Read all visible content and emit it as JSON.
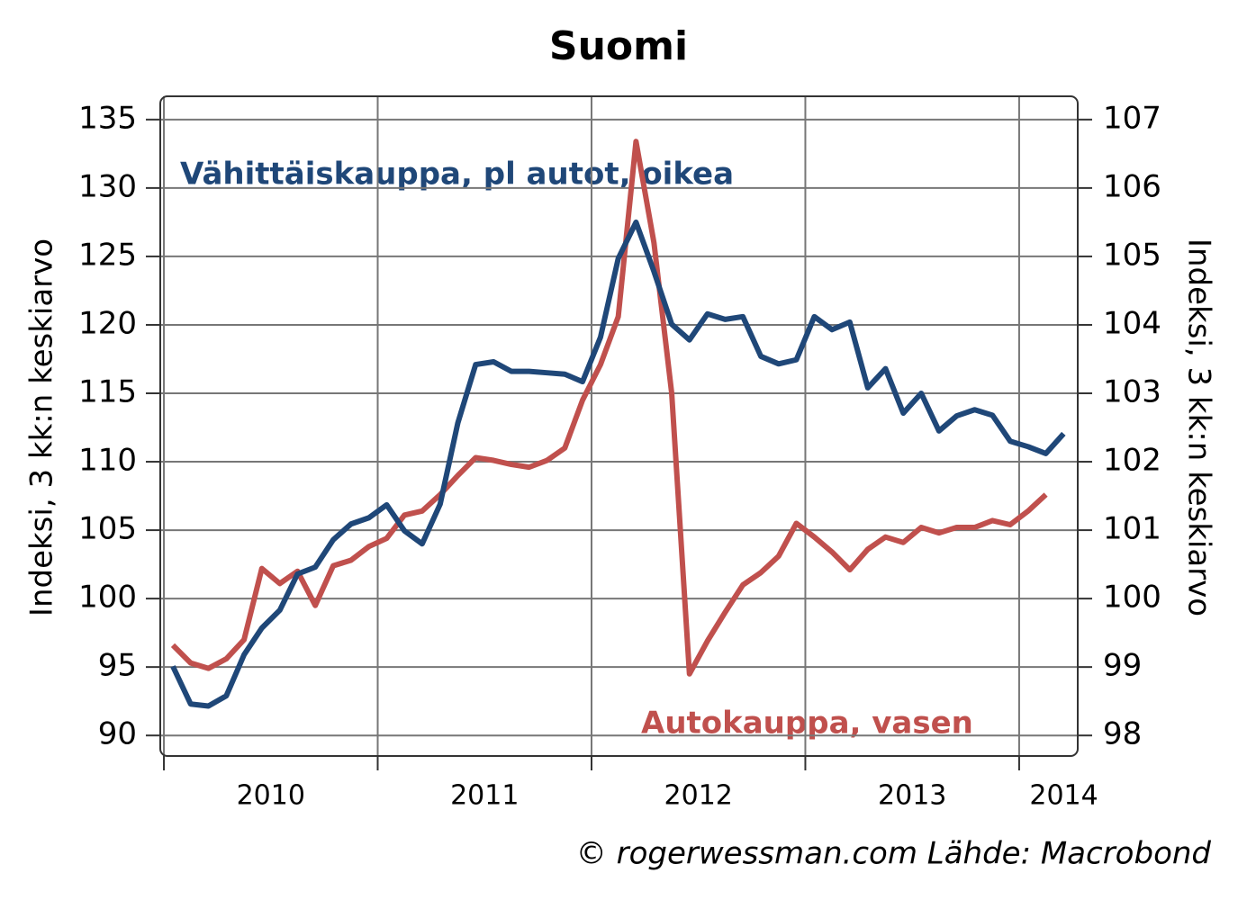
{
  "chart_data": {
    "type": "line",
    "title": "Suomi",
    "y_label": "Indeksi, 3 kk:n keskiarvo",
    "y2_label": "Indeksi, 3 kk:n keskiarvo",
    "source": "© rogerwessman.com Lähde: Macrobond",
    "annotations": [
      {
        "text": "Vähittäiskauppa, pl autot, oikea",
        "series": 0
      },
      {
        "text": "Autokauppa, vasen",
        "series": 1
      }
    ],
    "x": [
      2010.042,
      2010.125,
      2010.208,
      2010.292,
      2010.375,
      2010.458,
      2010.542,
      2010.625,
      2010.708,
      2010.792,
      2010.875,
      2010.958,
      2011.042,
      2011.125,
      2011.208,
      2011.292,
      2011.375,
      2011.458,
      2011.542,
      2011.625,
      2011.708,
      2011.792,
      2011.875,
      2011.958,
      2012.042,
      2012.125,
      2012.208,
      2012.292,
      2012.375,
      2012.458,
      2012.542,
      2012.625,
      2012.708,
      2012.792,
      2012.875,
      2012.958,
      2013.042,
      2013.125,
      2013.208,
      2013.292,
      2013.375,
      2013.458,
      2013.542,
      2013.625,
      2013.708,
      2013.792,
      2013.875,
      2013.958,
      2014.042,
      2014.125,
      2014.208
    ],
    "series": [
      {
        "name": "Vähittäiskauppa, pl autot",
        "color": "#1f4778",
        "axis": "y2",
        "values": [
          99.01,
          98.46,
          98.43,
          98.58,
          99.18,
          99.57,
          99.83,
          100.36,
          100.46,
          100.86,
          101.09,
          101.18,
          101.37,
          100.99,
          100.8,
          101.38,
          102.57,
          103.42,
          103.46,
          103.32,
          103.32,
          103.3,
          103.28,
          103.17,
          103.82,
          104.97,
          105.5,
          104.78,
          104.01,
          103.78,
          104.16,
          104.08,
          104.12,
          103.54,
          103.43,
          103.49,
          104.12,
          103.93,
          104.04,
          103.08,
          103.36,
          102.71,
          103.0,
          102.45,
          102.67,
          102.76,
          102.68,
          102.3,
          102.22,
          102.12,
          102.41
        ]
      },
      {
        "name": "Autokauppa",
        "color": "#c0504d",
        "axis": "y",
        "values": [
          96.6,
          95.3,
          94.9,
          95.6,
          97.0,
          102.2,
          101.1,
          102.0,
          99.5,
          102.4,
          102.8,
          103.8,
          104.4,
          106.1,
          106.4,
          107.6,
          109.0,
          110.3,
          110.1,
          109.8,
          109.6,
          110.1,
          111.0,
          114.5,
          117.1,
          120.6,
          133.4,
          126.0,
          115.0,
          94.5,
          96.9,
          99.0,
          101.0,
          101.9,
          103.1,
          105.5,
          104.5,
          103.4,
          102.1,
          103.6,
          104.5,
          104.1,
          105.2,
          104.8,
          105.2,
          105.2,
          105.7,
          105.4,
          106.4,
          107.6,
          null
        ]
      }
    ],
    "xlim": [
      2009.983,
      2014.274
    ],
    "xticks": [
      2010,
      2011,
      2012,
      2013,
      2014
    ],
    "ylim": [
      88.5,
      136.7
    ],
    "yticks": [
      90,
      95,
      100,
      105,
      110,
      115,
      120,
      125,
      130,
      135
    ],
    "y2lim": [
      97.7,
      107.34
    ],
    "y2ticks": [
      98,
      99,
      100,
      101,
      102,
      103,
      104,
      105,
      106,
      107
    ],
    "grid": true
  }
}
